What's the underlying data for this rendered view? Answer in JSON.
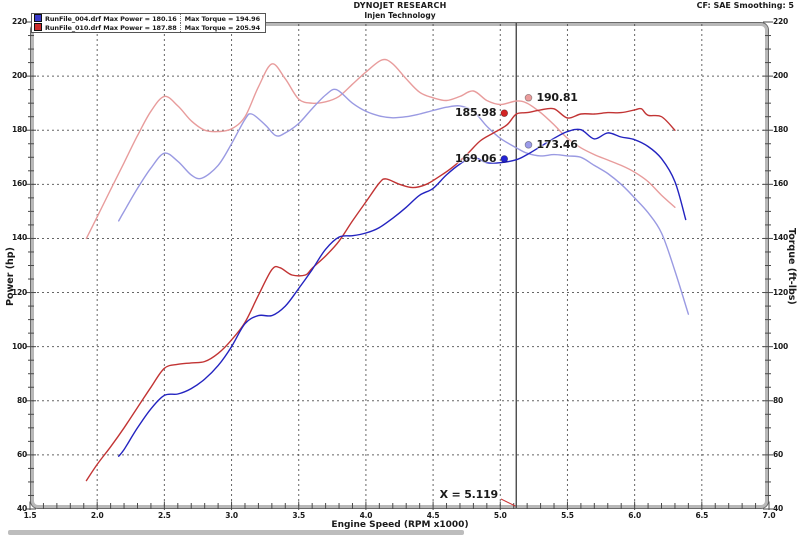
{
  "header": {
    "title": "DYNOJET RESEARCH",
    "subtitle": "Injen Technology",
    "correction": "CF: SAE  Smoothing: 5"
  },
  "legend": {
    "rows": [
      {
        "swatch_color": "#3a3acc",
        "label": "RunFile_004.drf Max Power = 180.16",
        "torque": "Max Torque = 194.96"
      },
      {
        "swatch_color": "#cc2b2b",
        "label": "RunFile_010.drf Max Power = 187.88",
        "torque": "Max Torque = 205.94"
      }
    ]
  },
  "chart_data": {
    "type": "line",
    "title": "DYNOJET RESEARCH",
    "subtitle": "Injen Technology",
    "xlabel": "Engine Speed (RPM x1000)",
    "ylabel_left": "Power (hp)",
    "ylabel_right": "Torque (ft-lbs)",
    "xlim": [
      1.5,
      7.0
    ],
    "ylim": [
      40,
      220
    ],
    "x_ticks": [
      "1.5",
      "2.0",
      "2.5",
      "3.0",
      "3.5",
      "4.0",
      "4.5",
      "5.0",
      "5.5",
      "6.0",
      "6.5",
      "7.0"
    ],
    "y_ticks": [
      40,
      60,
      80,
      100,
      120,
      140,
      160,
      180,
      200,
      220
    ],
    "x_minor_step": 0.1,
    "y_minor_step": 5,
    "grid": "dashed",
    "legend_position": "top-left",
    "colors": {
      "grid": "#3f3f3f",
      "cursor": "#4a4a4a",
      "frame": "#6a6a6a",
      "connector": "#cc3333"
    },
    "cursor": {
      "x": 5.119,
      "label": "X = 5.119"
    },
    "series": [
      {
        "name": "RunFile_010 Torque (ft-lbs)",
        "max": 205.94,
        "color": "#e89c9c",
        "points": [
          [
            1.92,
            140
          ],
          [
            2.0,
            148
          ],
          [
            2.1,
            158
          ],
          [
            2.2,
            168
          ],
          [
            2.3,
            178
          ],
          [
            2.4,
            187
          ],
          [
            2.5,
            192.5
          ],
          [
            2.6,
            189
          ],
          [
            2.7,
            183.5
          ],
          [
            2.8,
            180
          ],
          [
            2.9,
            179.5
          ],
          [
            3.0,
            180.5
          ],
          [
            3.1,
            185
          ],
          [
            3.2,
            196
          ],
          [
            3.3,
            204.5
          ],
          [
            3.4,
            199
          ],
          [
            3.5,
            191.5
          ],
          [
            3.6,
            190
          ],
          [
            3.7,
            190.5
          ],
          [
            3.8,
            192.5
          ],
          [
            3.9,
            197
          ],
          [
            4.0,
            201.5
          ],
          [
            4.12,
            206
          ],
          [
            4.2,
            204.5
          ],
          [
            4.3,
            199
          ],
          [
            4.4,
            194
          ],
          [
            4.5,
            192
          ],
          [
            4.6,
            191
          ],
          [
            4.7,
            192.5
          ],
          [
            4.8,
            194.5
          ],
          [
            4.9,
            191
          ],
          [
            5.0,
            189.5
          ],
          [
            5.12,
            190.8
          ],
          [
            5.2,
            190
          ],
          [
            5.3,
            186.5
          ],
          [
            5.4,
            182
          ],
          [
            5.5,
            177
          ],
          [
            5.6,
            173.5
          ],
          [
            5.7,
            171
          ],
          [
            5.8,
            169
          ],
          [
            5.9,
            167
          ],
          [
            6.0,
            164.5
          ],
          [
            6.1,
            161
          ],
          [
            6.2,
            156
          ],
          [
            6.3,
            151.5
          ]
        ]
      },
      {
        "name": "RunFile_004 Torque (ft-lbs)",
        "max": 194.96,
        "color": "#9a9ae2",
        "points": [
          [
            2.16,
            146.5
          ],
          [
            2.2,
            150
          ],
          [
            2.3,
            158.5
          ],
          [
            2.4,
            166
          ],
          [
            2.5,
            171.5
          ],
          [
            2.6,
            168.5
          ],
          [
            2.7,
            163.5
          ],
          [
            2.78,
            162.3
          ],
          [
            2.9,
            167
          ],
          [
            3.0,
            175
          ],
          [
            3.1,
            184
          ],
          [
            3.15,
            186
          ],
          [
            3.25,
            182
          ],
          [
            3.33,
            178
          ],
          [
            3.4,
            179
          ],
          [
            3.5,
            182.5
          ],
          [
            3.6,
            188
          ],
          [
            3.7,
            193
          ],
          [
            3.78,
            195
          ],
          [
            3.9,
            190
          ],
          [
            4.0,
            187
          ],
          [
            4.1,
            185.3
          ],
          [
            4.2,
            184.6
          ],
          [
            4.3,
            185
          ],
          [
            4.4,
            186
          ],
          [
            4.5,
            187.3
          ],
          [
            4.6,
            188.5
          ],
          [
            4.7,
            189
          ],
          [
            4.8,
            187
          ],
          [
            4.9,
            181.5
          ],
          [
            5.0,
            177
          ],
          [
            5.12,
            173.5
          ],
          [
            5.2,
            171.5
          ],
          [
            5.3,
            170.5
          ],
          [
            5.4,
            171
          ],
          [
            5.5,
            170.5
          ],
          [
            5.6,
            170
          ],
          [
            5.7,
            167
          ],
          [
            5.8,
            164
          ],
          [
            5.9,
            160
          ],
          [
            6.0,
            155
          ],
          [
            6.1,
            149.5
          ],
          [
            6.2,
            142
          ],
          [
            6.3,
            128
          ],
          [
            6.4,
            112
          ]
        ]
      },
      {
        "name": "RunFile_010 Power (hp)",
        "max": 187.88,
        "color": "#c23434",
        "points": [
          [
            1.92,
            50.5
          ],
          [
            2.0,
            56.5
          ],
          [
            2.1,
            63
          ],
          [
            2.2,
            70
          ],
          [
            2.3,
            77.5
          ],
          [
            2.4,
            85
          ],
          [
            2.5,
            92
          ],
          [
            2.6,
            93.5
          ],
          [
            2.7,
            94
          ],
          [
            2.8,
            94.5
          ],
          [
            2.9,
            97.5
          ],
          [
            3.0,
            102.5
          ],
          [
            3.1,
            109
          ],
          [
            3.2,
            119
          ],
          [
            3.3,
            128.5
          ],
          [
            3.36,
            129.2
          ],
          [
            3.45,
            126.5
          ],
          [
            3.55,
            126.5
          ],
          [
            3.6,
            129
          ],
          [
            3.7,
            133.5
          ],
          [
            3.8,
            139
          ],
          [
            3.9,
            146.5
          ],
          [
            4.0,
            153.5
          ],
          [
            4.1,
            160.5
          ],
          [
            4.15,
            162
          ],
          [
            4.25,
            160
          ],
          [
            4.35,
            158.8
          ],
          [
            4.45,
            160
          ],
          [
            4.55,
            163
          ],
          [
            4.65,
            166.5
          ],
          [
            4.75,
            171
          ],
          [
            4.85,
            176
          ],
          [
            4.95,
            179
          ],
          [
            5.05,
            182
          ],
          [
            5.12,
            186
          ],
          [
            5.2,
            186.5
          ],
          [
            5.3,
            187.5
          ],
          [
            5.4,
            187.9
          ],
          [
            5.5,
            184.5
          ],
          [
            5.6,
            186
          ],
          [
            5.7,
            186
          ],
          [
            5.8,
            186.5
          ],
          [
            5.9,
            186.5
          ],
          [
            6.0,
            187.5
          ],
          [
            6.05,
            187.9
          ],
          [
            6.1,
            185.5
          ],
          [
            6.2,
            185
          ],
          [
            6.3,
            180
          ]
        ]
      },
      {
        "name": "RunFile_004 Power (hp)",
        "max": 180.16,
        "color": "#2323c0",
        "points": [
          [
            2.16,
            59.5
          ],
          [
            2.2,
            62
          ],
          [
            2.3,
            70
          ],
          [
            2.4,
            77
          ],
          [
            2.5,
            82
          ],
          [
            2.6,
            82.5
          ],
          [
            2.7,
            84.5
          ],
          [
            2.8,
            88
          ],
          [
            2.9,
            93
          ],
          [
            3.0,
            100
          ],
          [
            3.1,
            108.5
          ],
          [
            3.2,
            111.5
          ],
          [
            3.3,
            111.5
          ],
          [
            3.4,
            115
          ],
          [
            3.5,
            121.5
          ],
          [
            3.6,
            128.5
          ],
          [
            3.7,
            136
          ],
          [
            3.8,
            140.5
          ],
          [
            3.9,
            141
          ],
          [
            4.0,
            142
          ],
          [
            4.1,
            144
          ],
          [
            4.2,
            147.5
          ],
          [
            4.3,
            151.5
          ],
          [
            4.4,
            156
          ],
          [
            4.5,
            158.5
          ],
          [
            4.6,
            163.5
          ],
          [
            4.7,
            167.5
          ],
          [
            4.8,
            170
          ],
          [
            4.9,
            168
          ],
          [
            5.0,
            168
          ],
          [
            5.12,
            169.1
          ],
          [
            5.2,
            171
          ],
          [
            5.3,
            174
          ],
          [
            5.4,
            177
          ],
          [
            5.5,
            179.5
          ],
          [
            5.6,
            180.2
          ],
          [
            5.7,
            176.8
          ],
          [
            5.8,
            179
          ],
          [
            5.9,
            177.5
          ],
          [
            6.0,
            176.5
          ],
          [
            6.1,
            174
          ],
          [
            6.2,
            169.5
          ],
          [
            6.3,
            161
          ],
          [
            6.38,
            147
          ]
        ]
      }
    ],
    "annotations": [
      {
        "text": "185.98",
        "dot_x": 5.03,
        "dot_y": 186.3,
        "side": "left",
        "color": "#d32424"
      },
      {
        "text": "190.81",
        "dot_x": 5.21,
        "dot_y": 192.0,
        "side": "right",
        "color": "#ea9c9c"
      },
      {
        "text": "169.06",
        "dot_x": 5.03,
        "dot_y": 169.4,
        "side": "left",
        "color": "#2424d3"
      },
      {
        "text": "173.46",
        "dot_x": 5.21,
        "dot_y": 174.6,
        "side": "right",
        "color": "#9c9cea"
      }
    ]
  }
}
